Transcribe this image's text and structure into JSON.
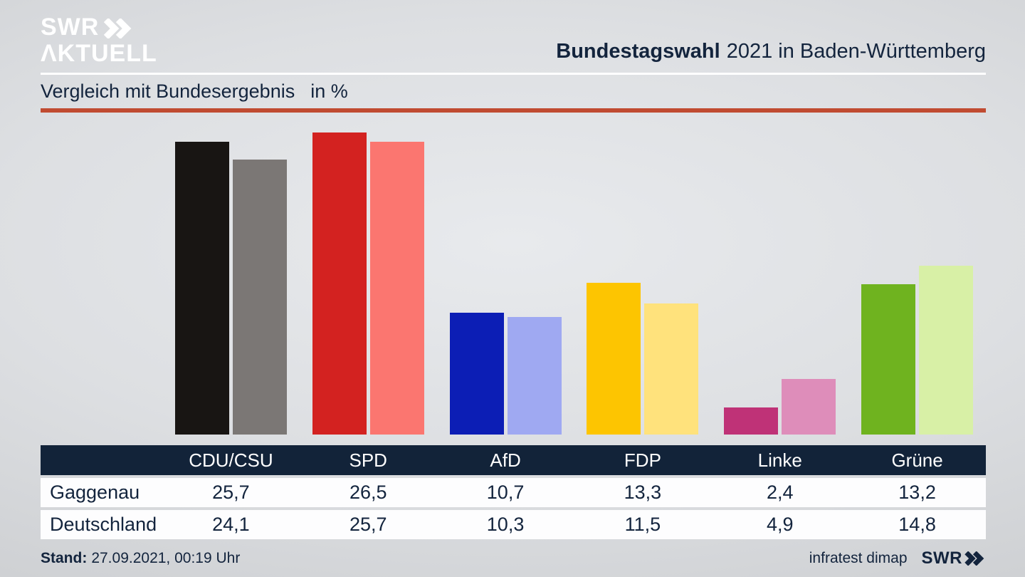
{
  "header": {
    "logo_line1": "SWR",
    "logo_line2": "ΛKTUELL",
    "title_bold": "Bundestagswahl",
    "title_rest": "2021 in Baden-Württemberg"
  },
  "subtitle": {
    "text": "Vergleich mit Bundesergebnis",
    "unit": "in %"
  },
  "chart_data": {
    "type": "bar",
    "title": "Vergleich mit Bundesergebnis in %",
    "categories": [
      "CDU/CSU",
      "SPD",
      "AfD",
      "FDP",
      "Linke",
      "Grüne"
    ],
    "series": [
      {
        "name": "Gaggenau",
        "values": [
          25.7,
          26.5,
          10.7,
          13.3,
          2.4,
          13.2
        ]
      },
      {
        "name": "Deutschland",
        "values": [
          24.1,
          25.7,
          10.3,
          11.5,
          4.9,
          14.8
        ]
      }
    ],
    "colors": [
      [
        "#181513",
        "#d32220",
        "#0c1eb5",
        "#fdc501",
        "#bf3277",
        "#6fb31f"
      ],
      [
        "#7b7775",
        "#fb7670",
        "#9fa9f2",
        "#ffe27c",
        "#de8dba",
        "#d8f0a6"
      ]
    ],
    "ylim": [
      0,
      28
    ],
    "grid": false,
    "legend_position": "table-below"
  },
  "table": {
    "rows": [
      {
        "label": "Gaggenau",
        "values": [
          "25,7",
          "26,5",
          "10,7",
          "13,3",
          "2,4",
          "13,2"
        ]
      },
      {
        "label": "Deutschland",
        "values": [
          "24,1",
          "25,7",
          "10,3",
          "11,5",
          "4,9",
          "14,8"
        ]
      }
    ]
  },
  "footer": {
    "stand_label": "Stand:",
    "stand_value": "27.09.2021, 00:19 Uhr",
    "source": "infratest dimap",
    "swr_logo_text": "SWR"
  },
  "colors": {
    "navy": "#13243d",
    "table_header_bg": "#122339",
    "red_line": "#c04b31",
    "white_line": "#ffffff"
  }
}
